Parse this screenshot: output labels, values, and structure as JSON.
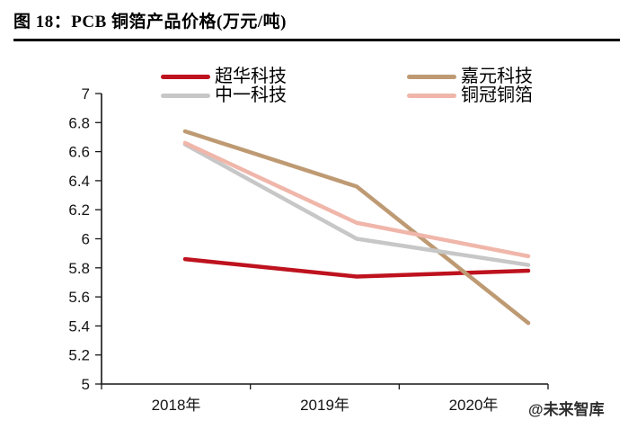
{
  "page": {
    "title": "图 18：PCB 铜箔产品价格(万元/吨)"
  },
  "watermark": "@未来智库",
  "chart_data": {
    "type": "line",
    "title": "PCB 铜箔产品价格(万元/吨)",
    "categories": [
      "2018年",
      "2019年",
      "2020年"
    ],
    "series": [
      {
        "name": "超华科技",
        "color": "#be121e",
        "values": [
          5.86,
          5.74,
          5.78
        ]
      },
      {
        "name": "嘉元科技",
        "color": "#be9a73",
        "values": [
          6.74,
          6.36,
          5.42
        ]
      },
      {
        "name": "中一科技",
        "color": "#c7c7c7",
        "values": [
          6.65,
          6.0,
          5.82
        ]
      },
      {
        "name": "铜冠铜箔",
        "color": "#f0b6aa",
        "values": [
          6.66,
          6.11,
          5.88
        ]
      }
    ],
    "ylim": [
      5,
      7
    ],
    "ytick_step": 0.2,
    "yticks": [
      7,
      6.8,
      6.6,
      6.4,
      6.2,
      6,
      5.8,
      5.6,
      5.4,
      5.2,
      5
    ],
    "xlabel": "",
    "ylabel": "",
    "legend_position": "top",
    "grid": false
  }
}
